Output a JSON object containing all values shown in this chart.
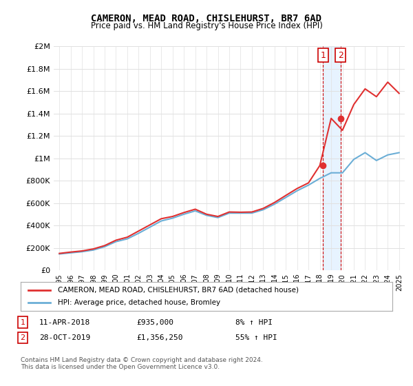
{
  "title": "CAMERON, MEAD ROAD, CHISLEHURST, BR7 6AD",
  "subtitle": "Price paid vs. HM Land Registry's House Price Index (HPI)",
  "xlabel": "",
  "ylabel": "",
  "ylim": [
    0,
    2000000
  ],
  "yticks": [
    0,
    200000,
    400000,
    600000,
    800000,
    1000000,
    1200000,
    1400000,
    1600000,
    1800000,
    2000000
  ],
  "ytick_labels": [
    "£0",
    "£200K",
    "£400K",
    "£600K",
    "£800K",
    "£1M",
    "£1.2M",
    "£1.4M",
    "£1.6M",
    "£1.8M",
    "£2M"
  ],
  "background_color": "#ffffff",
  "grid_color": "#e0e0e0",
  "hpi_color": "#6baed6",
  "price_color": "#e03030",
  "marker_color": "#e03030",
  "annotation_box_color": "#cc0000",
  "shaded_region_color": "#ddeeff",
  "event1_year": 2018.28,
  "event2_year": 2019.83,
  "event1_price": 935000,
  "event2_price": 1356250,
  "legend_label_red": "CAMERON, MEAD ROAD, CHISLEHURST, BR7 6AD (detached house)",
  "legend_label_blue": "HPI: Average price, detached house, Bromley",
  "footnote": "Contains HM Land Registry data © Crown copyright and database right 2024.\nThis data is licensed under the Open Government Licence v3.0.",
  "table_row1": [
    "1",
    "11-APR-2018",
    "£935,000",
    "8% ↑ HPI"
  ],
  "table_row2": [
    "2",
    "28-OCT-2019",
    "£1,356,250",
    "55% ↑ HPI"
  ],
  "hpi_years": [
    1995,
    1996,
    1997,
    1998,
    1999,
    2000,
    2001,
    2002,
    2003,
    2004,
    2005,
    2006,
    2007,
    2008,
    2009,
    2010,
    2011,
    2012,
    2013,
    2014,
    2015,
    2016,
    2017,
    2018,
    2019,
    2020,
    2021,
    2022,
    2023,
    2024,
    2025
  ],
  "hpi_values": [
    145000,
    155000,
    165000,
    180000,
    210000,
    255000,
    280000,
    330000,
    385000,
    440000,
    465000,
    500000,
    530000,
    490000,
    470000,
    510000,
    510000,
    510000,
    540000,
    590000,
    650000,
    710000,
    760000,
    820000,
    870000,
    870000,
    990000,
    1050000,
    980000,
    1030000,
    1050000
  ],
  "price_years": [
    1995,
    1996,
    1997,
    1998,
    1999,
    2000,
    2001,
    2002,
    2003,
    2004,
    2005,
    2006,
    2007,
    2008,
    2009,
    2010,
    2011,
    2012,
    2013,
    2014,
    2015,
    2016,
    2017,
    2018,
    2019,
    2020,
    2021,
    2022,
    2023,
    2024,
    2025
  ],
  "price_values": [
    150000,
    162000,
    172000,
    190000,
    220000,
    268000,
    295000,
    350000,
    405000,
    460000,
    480000,
    515000,
    545000,
    500000,
    480000,
    520000,
    518000,
    520000,
    552000,
    605000,
    668000,
    730000,
    780000,
    935000,
    1356250,
    1250000,
    1480000,
    1620000,
    1550000,
    1680000,
    1580000
  ]
}
